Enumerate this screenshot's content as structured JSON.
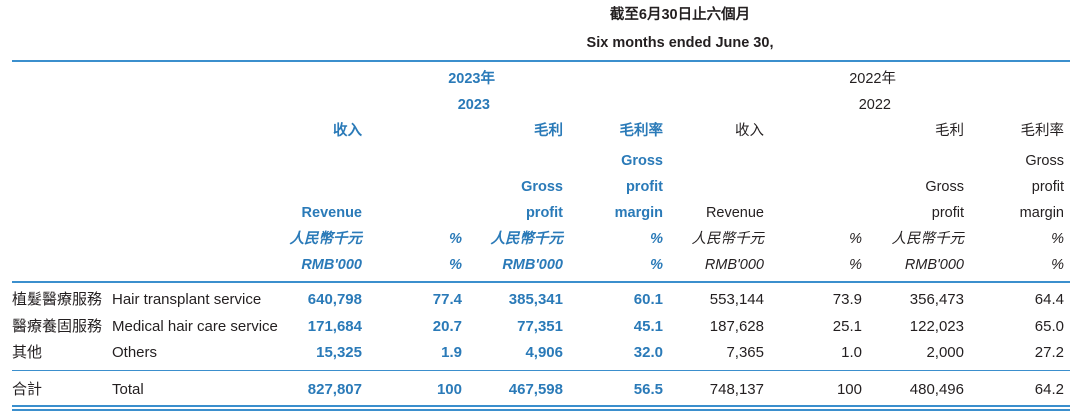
{
  "header": {
    "period_zh": "截至6月30日止六個月",
    "period_en": "Six months ended June 30,",
    "year2023_zh": "2023年",
    "year2023_en": "2023",
    "year2022_zh": "2022年",
    "year2022_en": "2022"
  },
  "columns": {
    "revenue_zh": "收入",
    "revenue_en": "Revenue",
    "gp_zh": "毛利",
    "gp_en_1": "Gross",
    "gp_en_2": "profit",
    "gpm_zh": "毛利率",
    "gpm_en_1": "Gross",
    "gpm_en_2": "profit",
    "gpm_en_3": "margin",
    "unit_zh": "人民幣千元",
    "unit_en": "RMB'000",
    "pct": "%"
  },
  "rows": [
    {
      "label_zh": "植髮醫療服務",
      "label_en": "Hair transplant service",
      "values_2023": [
        "640,798",
        "77.4",
        "385,341",
        "60.1"
      ],
      "values_2022": [
        "553,144",
        "73.9",
        "356,473",
        "64.4"
      ]
    },
    {
      "label_zh": "醫療養固服務",
      "label_en": "Medical hair care service",
      "values_2023": [
        "171,684",
        "20.7",
        "77,351",
        "45.1"
      ],
      "values_2022": [
        "187,628",
        "25.1",
        "122,023",
        "65.0"
      ]
    },
    {
      "label_zh": "其他",
      "label_en": "Others",
      "values_2023": [
        "15,325",
        "1.9",
        "4,906",
        "32.0"
      ],
      "values_2022": [
        "7,365",
        "1.0",
        "2,000",
        "27.2"
      ]
    }
  ],
  "total": {
    "label_zh": "合計",
    "label_en": "Total",
    "values_2023": [
      "827,807",
      "100",
      "467,598",
      "56.5"
    ],
    "values_2022": [
      "748,137",
      "100",
      "480,496",
      "64.2"
    ]
  }
}
